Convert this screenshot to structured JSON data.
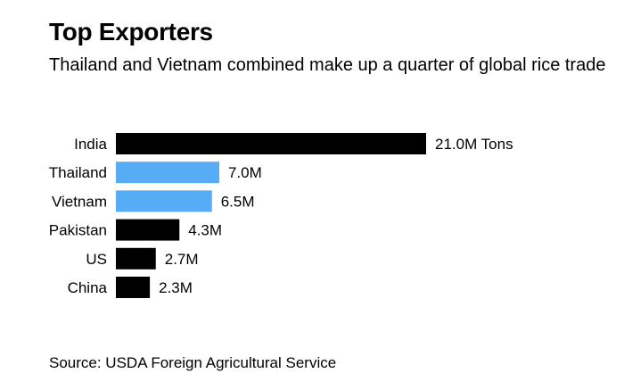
{
  "header": {
    "title": "Top Exporters",
    "subtitle": "Thailand and Vietnam combined make up a quarter of global rice trade"
  },
  "footer": {
    "source": "Source: USDA Foreign Agricultural Service"
  },
  "colors": {
    "highlight": "#56adf5",
    "default": "#000000"
  },
  "chart_data": {
    "type": "bar",
    "orientation": "horizontal",
    "categories": [
      "India",
      "Thailand",
      "Vietnam",
      "Pakistan",
      "US",
      "China"
    ],
    "values": [
      21.0,
      7.0,
      6.5,
      4.3,
      2.7,
      2.3
    ],
    "value_labels": [
      "21.0M Tons",
      "7.0M",
      "6.5M",
      "4.3M",
      "2.7M",
      "2.3M"
    ],
    "highlighted": [
      false,
      true,
      true,
      false,
      false,
      false
    ],
    "unit": "M Tons",
    "xlim": [
      0,
      21.0
    ],
    "grid": false,
    "legend": "none"
  }
}
